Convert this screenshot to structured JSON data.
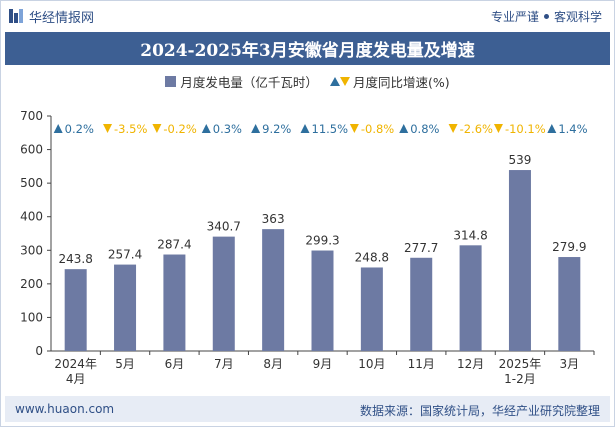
{
  "header": {
    "brand": "华经情报网",
    "slogan_left": "专业严谨",
    "slogan_right": "客观科学"
  },
  "title": "2024-2025年3月安徽省月度发电量及增速",
  "legend": {
    "bar": "月度发电量（亿千瓦时）",
    "growth": "月度同比增速(%)"
  },
  "footer": {
    "website": "www.huaon.com",
    "source": "数据来源：国家统计局，华经产业研究院整理"
  },
  "colors": {
    "bar": "#6d7aa3",
    "up": "#2e6f9e",
    "down": "#f0b400",
    "title_bg": "#3d5f93"
  },
  "chart_data": {
    "type": "bar",
    "categories": [
      "2024年\n4月",
      "5月",
      "6月",
      "7月",
      "8月",
      "9月",
      "10月",
      "11月",
      "12月",
      "2025年\n1-2月",
      "3月"
    ],
    "series": [
      {
        "name": "月度发电量（亿千瓦时）",
        "values": [
          243.8,
          257.4,
          287.4,
          340.7,
          363,
          299.3,
          248.8,
          277.7,
          314.8,
          539,
          279.9
        ],
        "labels": [
          "243.8",
          "257.4",
          "287.4",
          "340.7",
          "363",
          "299.3",
          "248.8",
          "277.7",
          "314.8",
          "539",
          "279.9"
        ]
      },
      {
        "name": "月度同比增速(%)",
        "values": [
          0.2,
          -3.5,
          -0.2,
          0.3,
          9.2,
          11.5,
          -0.8,
          0.8,
          -2.6,
          -10.1,
          1.4
        ],
        "labels": [
          "0.2%",
          "-3.5%",
          "-0.2%",
          "0.3%",
          "9.2%",
          "11.5%",
          "-0.8%",
          "0.8%",
          "-2.6%",
          "-10.1%",
          "1.4%"
        ]
      }
    ],
    "ylim": [
      0,
      700
    ],
    "yticks": [
      "0",
      "100",
      "200",
      "300",
      "400",
      "500",
      "600",
      "700"
    ],
    "legend_position": "top-center",
    "grid": false
  }
}
